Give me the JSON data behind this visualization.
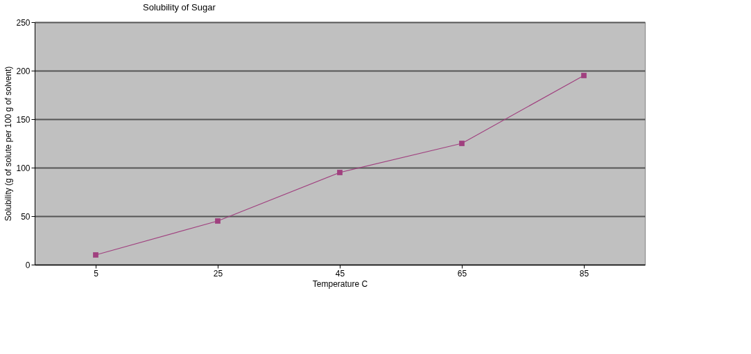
{
  "chart_data": {
    "type": "line",
    "title": "Solubility of Sugar",
    "xlabel": "Temperature C",
    "ylabel": "Solubility (g of solute per 100 g of solvent)",
    "categories": [
      "5",
      "25",
      "45",
      "65",
      "85"
    ],
    "series": [
      {
        "color": "#a0407f",
        "values": [
          10,
          45,
          95,
          125,
          195
        ]
      }
    ],
    "ylim": [
      0,
      250
    ],
    "yticks": [
      0,
      50,
      100,
      150,
      200,
      250
    ],
    "grid": "y",
    "marker": "square",
    "line_style": "solid",
    "legend": false
  }
}
